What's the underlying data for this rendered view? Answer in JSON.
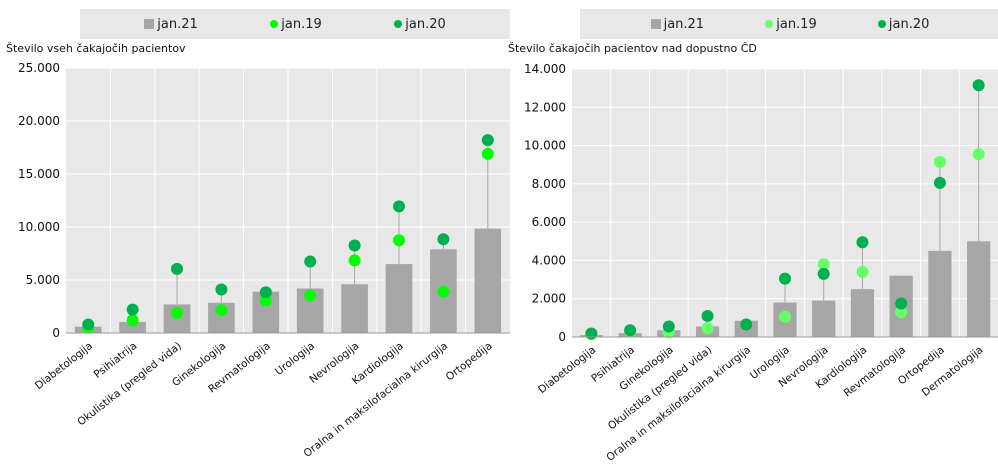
{
  "legend": [
    {
      "label": "jan.21",
      "kind": "square",
      "color": "#a6a6a6"
    },
    {
      "label": "jan.19",
      "kind": "dot",
      "color_key": "jan19"
    },
    {
      "label": "jan.20",
      "kind": "dot",
      "color": "#00b050"
    }
  ],
  "colors": {
    "bar": "#a6a6a6",
    "plot_bg": "#e8e8e8",
    "grid": "#ffffff",
    "left_jan19": "#00ff00",
    "right_jan19": "#66ff66",
    "jan20": "#00b050",
    "stem": "#a6a6a6"
  },
  "chart_data": [
    {
      "type": "bar",
      "title": "Število vseh čakajočih pacientov",
      "categories": [
        "Diabetologija",
        "Psihiatrija",
        "Okulistika (pregled vida)",
        "Ginekologija",
        "Revmatologija",
        "Urologija",
        "Nevrologija",
        "Kardiologija",
        "Oralna in maksilofacialna kirurgija",
        "Ortopedija"
      ],
      "series": [
        {
          "name": "jan.21",
          "kind": "bar",
          "values": [
            600,
            1050,
            2700,
            2850,
            3900,
            4200,
            4600,
            6500,
            7900,
            9850
          ]
        },
        {
          "name": "jan.19",
          "kind": "dot",
          "values": [
            500,
            1200,
            1900,
            2150,
            3050,
            3550,
            6850,
            8750,
            3900,
            16900
          ]
        },
        {
          "name": "jan.20",
          "kind": "dot",
          "values": [
            800,
            2200,
            6050,
            4100,
            3850,
            6750,
            8250,
            11950,
            8850,
            18200
          ]
        }
      ],
      "ylim": [
        0,
        25000
      ],
      "yticks": [
        "0",
        "5.000",
        "10.000",
        "15.000",
        "20.000",
        "25.000"
      ],
      "ytick_values": [
        0,
        5000,
        10000,
        15000,
        20000,
        25000
      ],
      "grid": true
    },
    {
      "type": "bar",
      "title": "Število čakajočih pacientov nad dopustno ČD",
      "categories": [
        "Diabetologija",
        "Psihiatrija",
        "Ginekologija",
        "Okulistika (pregled vida)",
        "Oralna in maksilofacialna kirurgija",
        "Urologija",
        "Nevrologija",
        "Kardiologija",
        "Revmatologija",
        "Ortopedija",
        "Dermatologija"
      ],
      "series": [
        {
          "name": "jan.21",
          "kind": "bar",
          "values": [
            100,
            200,
            350,
            550,
            850,
            1800,
            1900,
            2500,
            3200,
            4500,
            5000
          ]
        },
        {
          "name": "jan.19",
          "kind": "dot",
          "values": [
            150,
            300,
            250,
            450,
            650,
            1050,
            3800,
            3400,
            1300,
            9150,
            9550
          ]
        },
        {
          "name": "jan.20",
          "kind": "dot",
          "values": [
            180,
            350,
            550,
            1100,
            650,
            3050,
            3300,
            4950,
            1750,
            8050,
            13150
          ]
        }
      ],
      "ylim": [
        0,
        14000
      ],
      "yticks": [
        "0",
        "2.000",
        "4.000",
        "6.000",
        "8.000",
        "10.000",
        "12.000",
        "14.000"
      ],
      "ytick_values": [
        0,
        2000,
        4000,
        6000,
        8000,
        10000,
        12000,
        14000
      ],
      "grid": true
    }
  ]
}
